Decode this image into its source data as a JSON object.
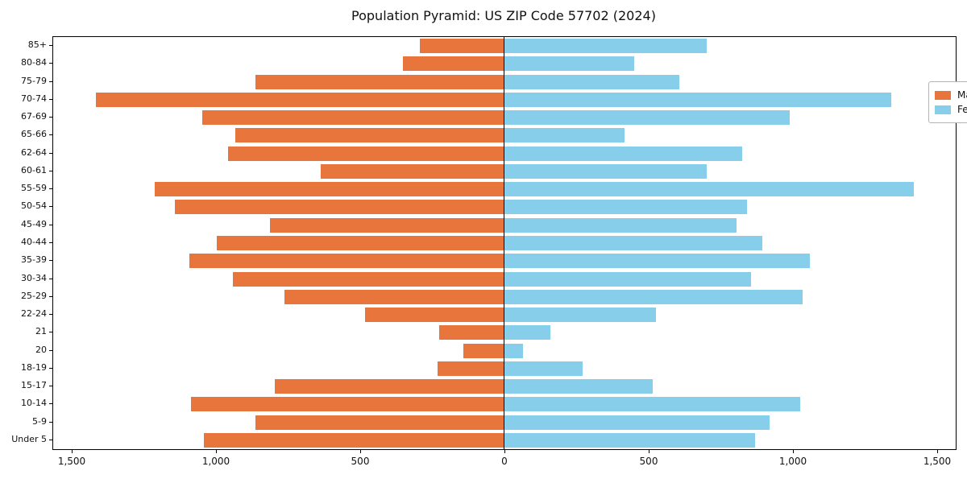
{
  "title": "Population Pyramid: US ZIP Code 57702 (2024)",
  "legend": {
    "male_label": "Male",
    "female_label": "Female",
    "position": "upper right"
  },
  "colors": {
    "male": "#E8763C",
    "female": "#87CEEB",
    "axis": "#000000"
  },
  "chart_data": {
    "type": "bar",
    "subtype": "population-pyramid",
    "title": "Population Pyramid: US ZIP Code 57702 (2024)",
    "xlabel": "",
    "ylabel": "",
    "grid": false,
    "legend_position": "upper right",
    "categories_top_to_bottom": [
      "85+",
      "80-84",
      "75-79",
      "70-74",
      "67-69",
      "65-66",
      "62-64",
      "60-61",
      "55-59",
      "50-54",
      "45-49",
      "40-44",
      "35-39",
      "30-34",
      "25-29",
      "22-24",
      "21",
      "20",
      "18-19",
      "15-17",
      "10-14",
      "5-9",
      "Under 5"
    ],
    "series": [
      {
        "name": "Male",
        "side": "left",
        "values": [
          290,
          350,
          860,
          1415,
          1045,
          930,
          955,
          635,
          1210,
          1140,
          810,
          995,
          1090,
          940,
          760,
          480,
          225,
          140,
          230,
          795,
          1085,
          860,
          1040
        ]
      },
      {
        "name": "Female",
        "side": "right",
        "values": [
          700,
          450,
          605,
          1340,
          990,
          415,
          825,
          700,
          1420,
          840,
          805,
          895,
          1060,
          855,
          1035,
          525,
          160,
          65,
          270,
          515,
          1025,
          920,
          870
        ]
      }
    ],
    "x_tick_values": [
      -1500,
      -1000,
      -500,
      0,
      500,
      1000,
      1500
    ],
    "x_tick_labels": [
      "1,500",
      "1,000",
      "500",
      "0",
      "500",
      "1,000",
      "1,500"
    ],
    "xlim": [
      -1565,
      1565
    ]
  }
}
